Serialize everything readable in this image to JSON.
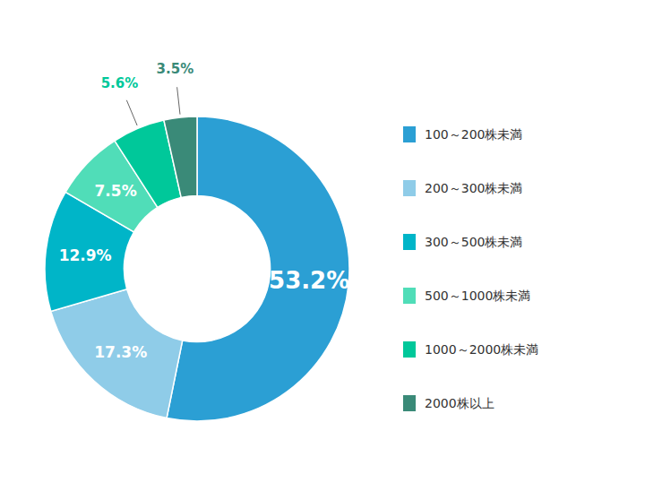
{
  "chart_data": {
    "type": "donut",
    "categories": [
      "100～200株未満",
      "200～300株未満",
      "300～500株未満",
      "500～1000株未満",
      "1000～2000株未満",
      "2000株以上"
    ],
    "values": [
      53.2,
      17.3,
      12.9,
      7.5,
      5.6,
      3.5
    ],
    "value_labels": [
      "53.2%",
      "17.3%",
      "12.9%",
      "7.5%",
      "5.6%",
      "3.5%"
    ],
    "colors": [
      "#2b9fd4",
      "#8fcce8",
      "#00b5c8",
      "#50ddb8",
      "#00c89a",
      "#3a8a78"
    ],
    "data_labels": true,
    "legend": "right"
  }
}
